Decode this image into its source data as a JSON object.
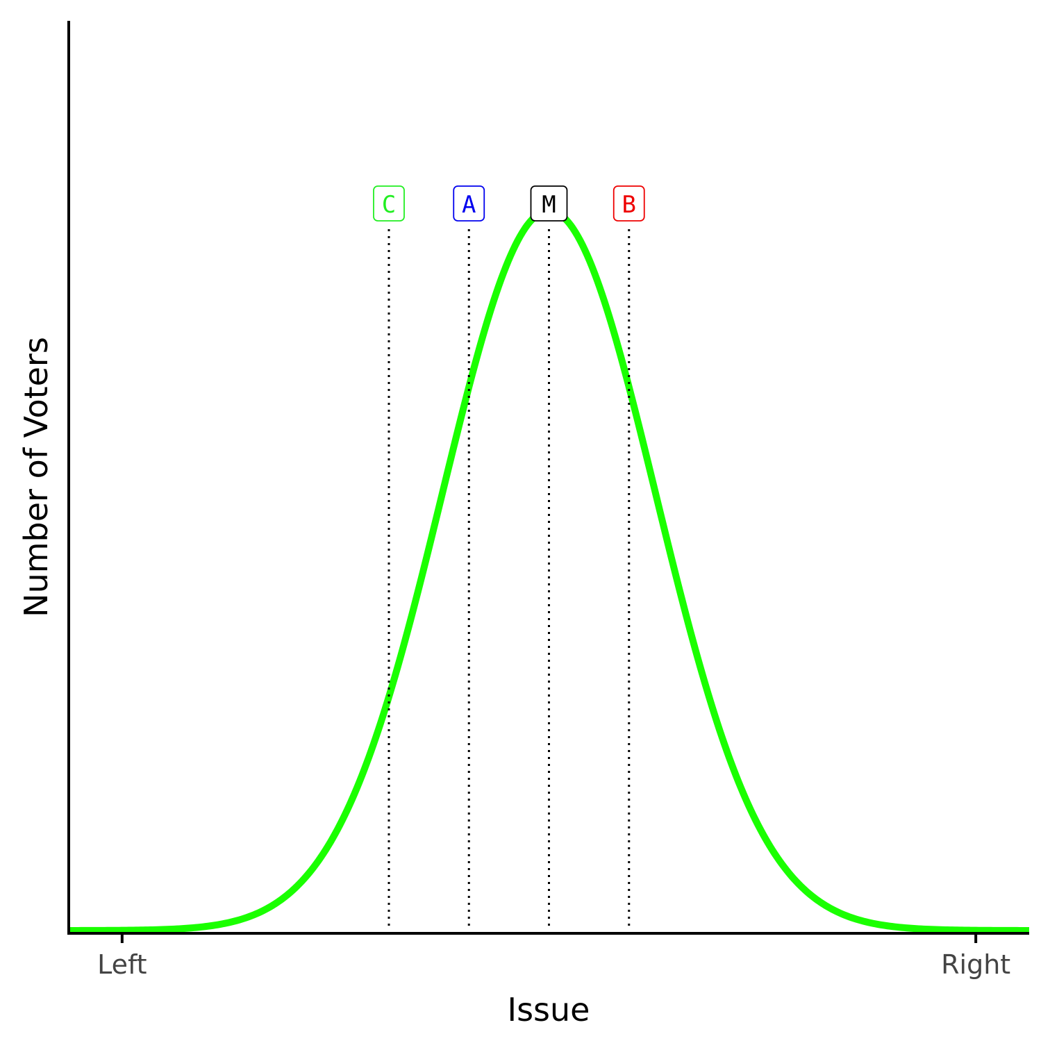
{
  "chart_data": {
    "type": "line",
    "title": "",
    "xlabel": "Issue",
    "ylabel": "Number of Voters",
    "x_ticks": [
      {
        "label": "Left",
        "value": 0
      },
      {
        "label": "Right",
        "value": 1
      }
    ],
    "xlim": [
      -0.0625,
      1.0625
    ],
    "ylim": [
      0,
      1
    ],
    "grid": false,
    "legend": "none",
    "series": [
      {
        "type": "normal_density",
        "mean": 0.5,
        "sd": 0.125,
        "color": "#1aff00",
        "style": "solid"
      }
    ],
    "markers": [
      {
        "label": "C",
        "x": 0.3125,
        "color": "#22ee22"
      },
      {
        "label": "A",
        "x": 0.40625,
        "color": "#0000ee"
      },
      {
        "label": "M",
        "x": 0.5,
        "color": "#000000"
      },
      {
        "label": "B",
        "x": 0.59375,
        "color": "#ee0000"
      }
    ],
    "marker_line_style": "dotted"
  }
}
